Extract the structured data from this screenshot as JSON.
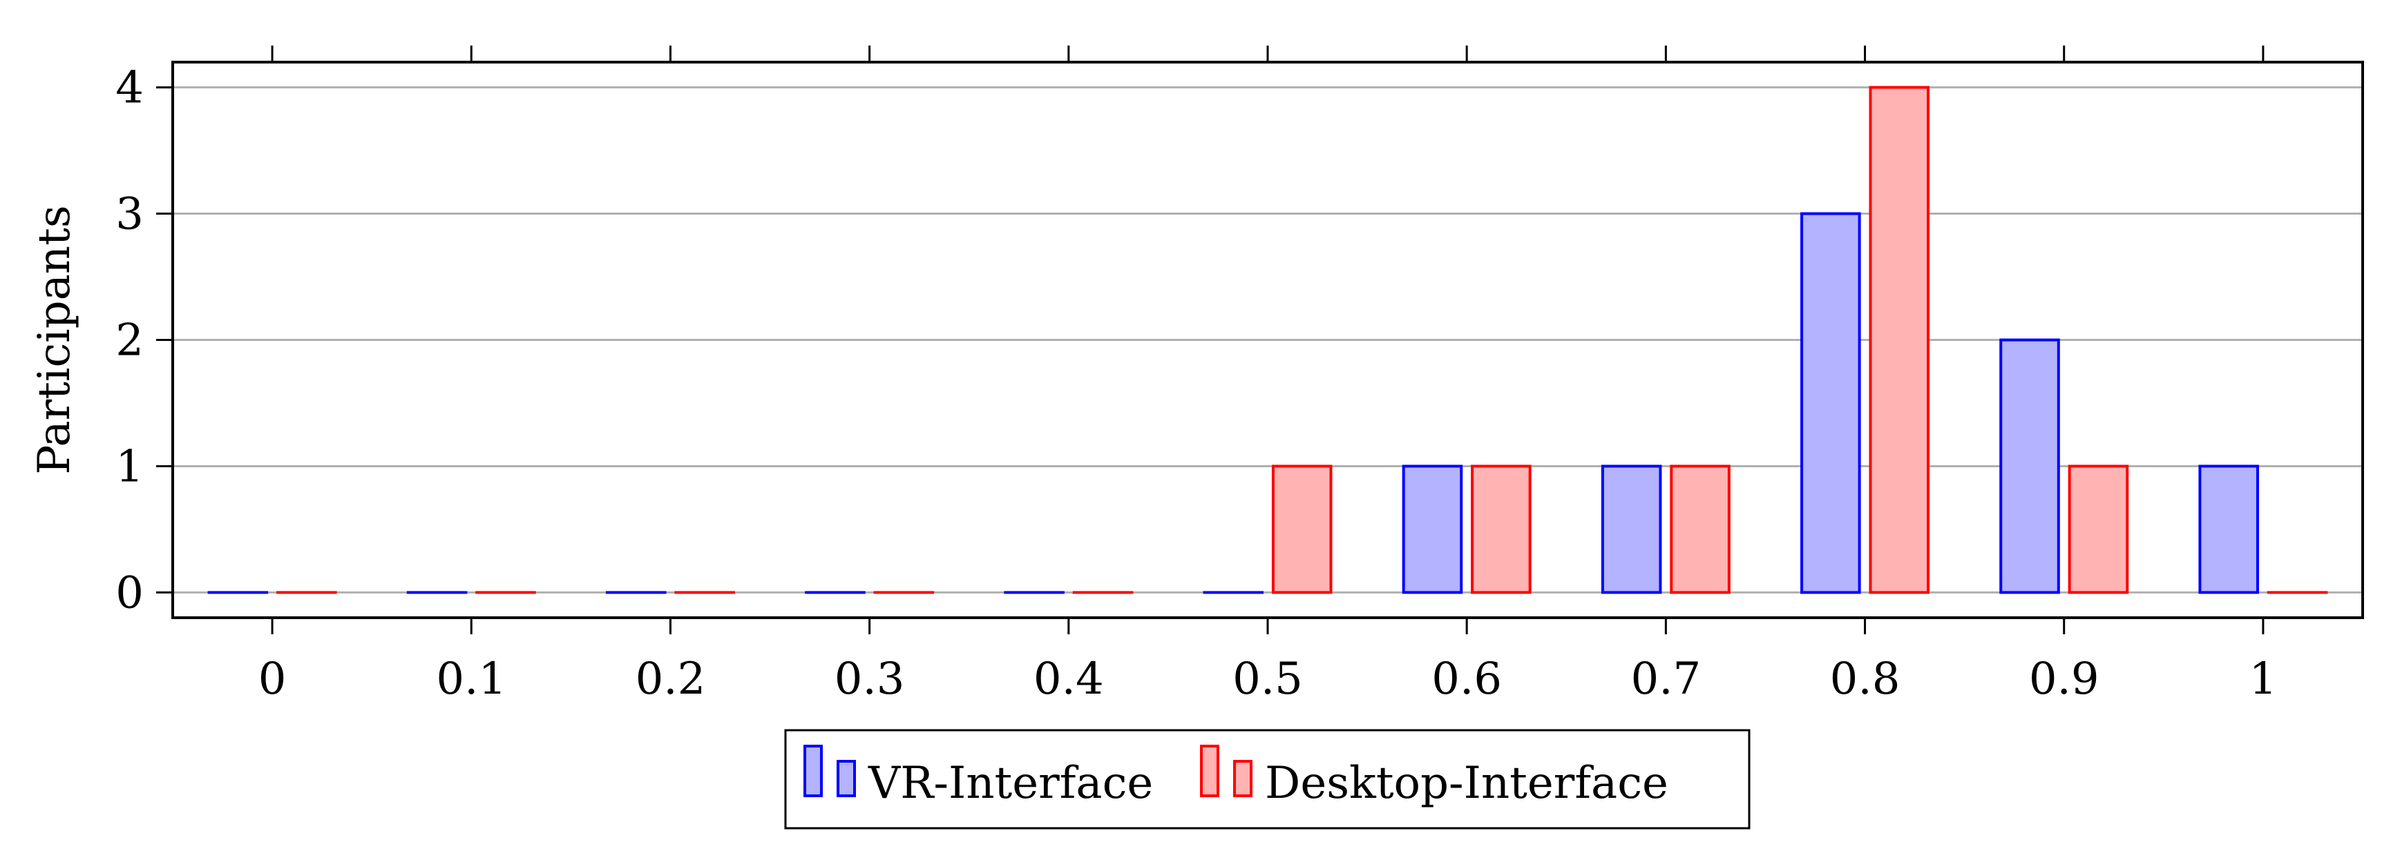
{
  "chart_data": {
    "type": "bar",
    "title": "",
    "xlabel": "",
    "ylabel": "Participants",
    "x": [
      0,
      0.1,
      0.2,
      0.3,
      0.4,
      0.5,
      0.6,
      0.7,
      0.8,
      0.9,
      1
    ],
    "x_tick_labels": [
      "0",
      "0.1",
      "0.2",
      "0.3",
      "0.4",
      "0.5",
      "0.6",
      "0.7",
      "0.8",
      "0.9",
      "1"
    ],
    "y_ticks": [
      0,
      1,
      2,
      3,
      4
    ],
    "y_tick_labels": [
      "0",
      "1",
      "2",
      "3",
      "4"
    ],
    "ylim": [
      -0.2,
      4.2
    ],
    "xlim": [
      -0.05,
      1.05
    ],
    "grid": "horizontal",
    "legend_position": "bottom-center",
    "series": [
      {
        "name": "VR-Interface",
        "values": [
          0,
          0,
          0,
          0,
          0,
          0,
          1,
          1,
          3,
          2,
          1
        ],
        "fill": "#b3b3ff",
        "stroke": "#0000ff"
      },
      {
        "name": "Desktop-Interface",
        "values": [
          0,
          0,
          0,
          0,
          0,
          1,
          1,
          1,
          4,
          1,
          0
        ],
        "fill": "#ffb3b3",
        "stroke": "#ff0000"
      }
    ]
  }
}
